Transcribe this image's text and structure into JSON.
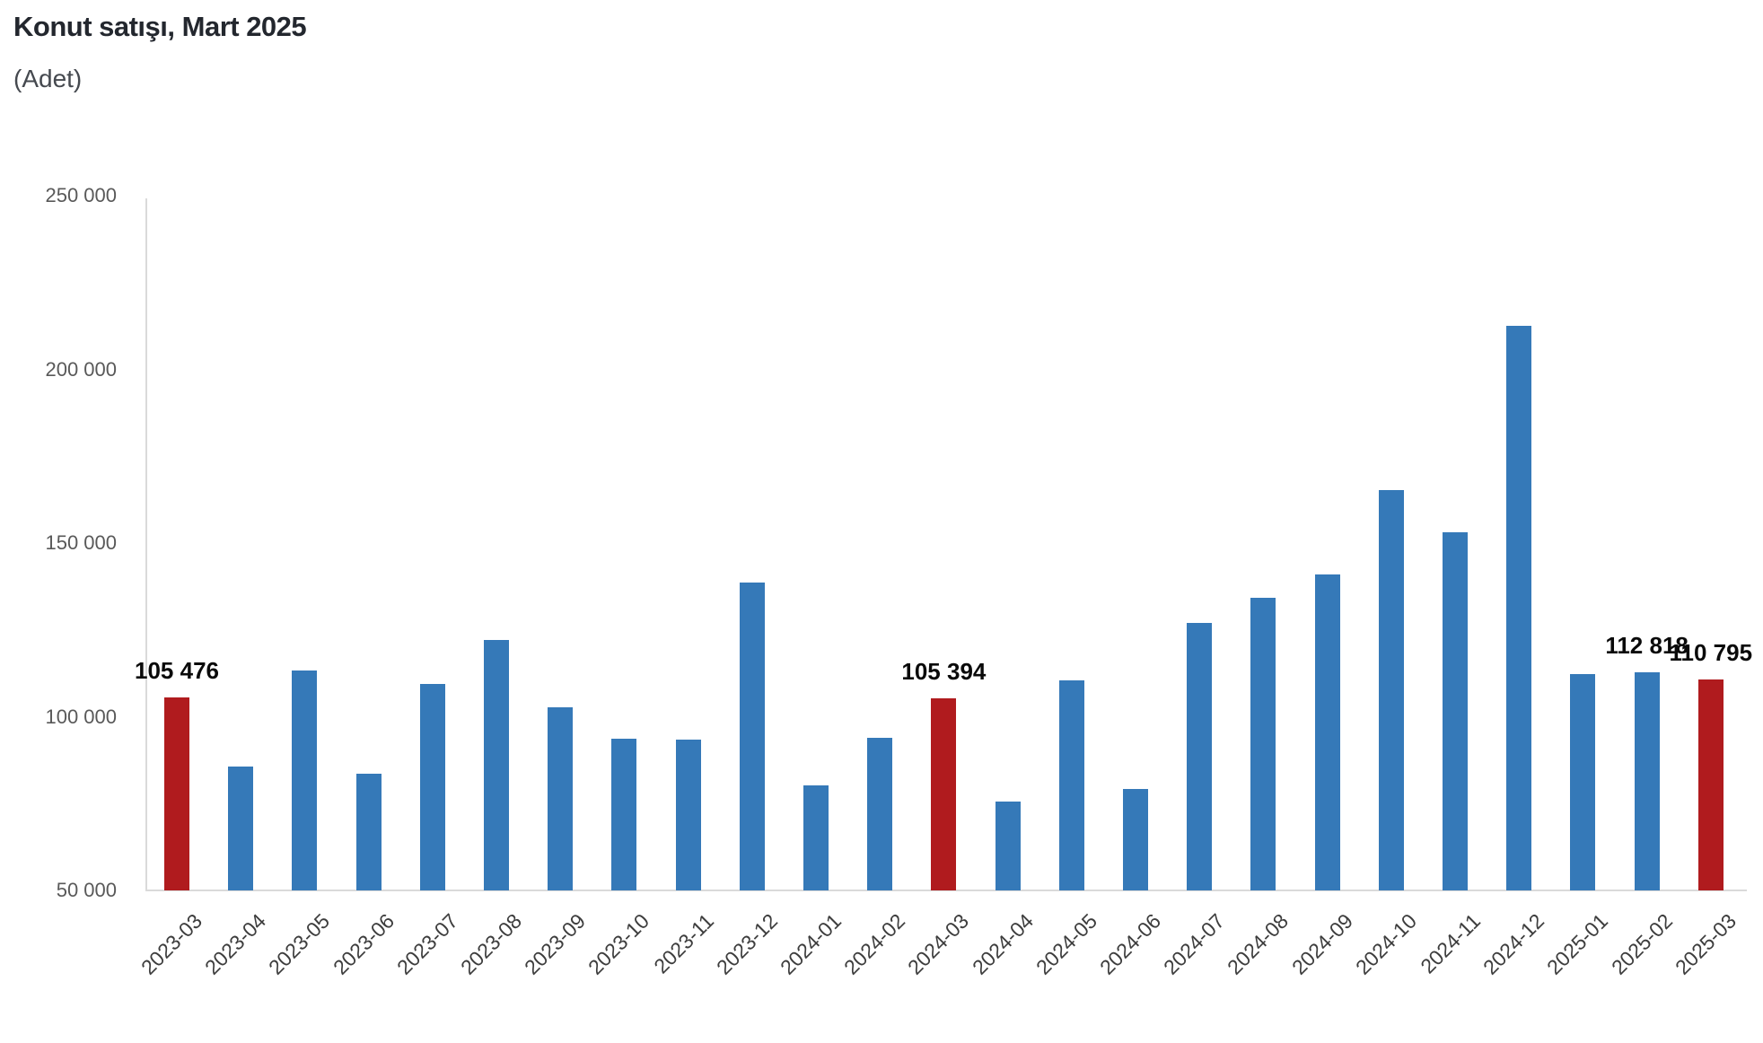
{
  "title": "Konut satışı, Mart 2025",
  "subtitle": "(Adet)",
  "chart_data": {
    "type": "bar",
    "title": "Konut satışı, Mart 2025",
    "unit_label": "(Adet)",
    "xlabel": "",
    "ylabel": "Adet",
    "ylim": [
      50000,
      250000
    ],
    "grid": "off",
    "legend": "none",
    "categories": [
      "2023-03",
      "2023-04",
      "2023-05",
      "2023-06",
      "2023-07",
      "2023-08",
      "2023-09",
      "2023-10",
      "2023-11",
      "2023-12",
      "2024-01",
      "2024-02",
      "2024-03",
      "2024-04",
      "2024-05",
      "2024-06",
      "2024-07",
      "2024-08",
      "2024-09",
      "2024-10",
      "2024-11",
      "2024-12",
      "2025-01",
      "2025-02",
      "2025-03"
    ],
    "values": [
      105476,
      85652,
      113428,
      83636,
      109548,
      122091,
      102656,
      93761,
      93514,
      138577,
      80308,
      93902,
      105394,
      75569,
      110588,
      79313,
      127088,
      134155,
      140919,
      165138,
      153014,
      212637,
      112173,
      112818,
      110795
    ],
    "highlighted_categories": [
      "2023-03",
      "2024-03",
      "2025-03"
    ],
    "data_labels": [
      {
        "category": "2023-03",
        "text": "105 476"
      },
      {
        "category": "2024-03",
        "text": "105 394"
      },
      {
        "category": "2025-02",
        "text": "112 818"
      },
      {
        "category": "2025-03",
        "text": "110 795"
      }
    ],
    "y_ticks": [
      {
        "value": 250000,
        "label": "250 000"
      },
      {
        "value": 200000,
        "label": "200 000"
      },
      {
        "value": 150000,
        "label": "150 000"
      },
      {
        "value": 100000,
        "label": "100 000"
      },
      {
        "value": 50000,
        "label": "50 000"
      }
    ],
    "bar_color": "#3579b8",
    "highlight_color": "#b01b1e"
  },
  "colors": {
    "title": "#23272e",
    "subtitle": "#45494f",
    "axis_line": "#dadada",
    "y_tick_text": "#595959",
    "x_tick_text": "#3d3d3d",
    "data_label_text": "#0a0a0a"
  }
}
